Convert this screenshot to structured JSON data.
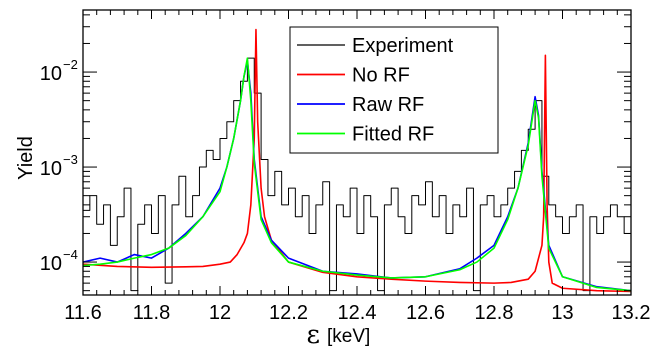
{
  "chart_data": {
    "type": "line",
    "xlabel_symbol": "ε",
    "xlabel_unit": "[keV]",
    "ylabel": "Yield",
    "xlim": [
      11.6,
      13.2
    ],
    "ylim": [
      4.5e-05,
      0.045
    ],
    "yscale": "log",
    "grid": false,
    "legend_position": "top-right",
    "x_ticks": [
      "11.6",
      "11.8",
      "12",
      "12.2",
      "12.4",
      "12.6",
      "12.8",
      "13",
      "13.2"
    ],
    "y_ticks": [
      {
        "base": "10",
        "exp": "−4",
        "value": 0.0001
      },
      {
        "base": "10",
        "exp": "−3",
        "value": 0.001
      },
      {
        "base": "10",
        "exp": "−2",
        "value": 0.01
      }
    ],
    "series": [
      {
        "name": "Experiment",
        "color": "#000000",
        "style": "step",
        "x": [
          11.6,
          11.62,
          11.64,
          11.66,
          11.68,
          11.7,
          11.72,
          11.74,
          11.76,
          11.78,
          11.8,
          11.82,
          11.84,
          11.86,
          11.88,
          11.9,
          11.92,
          11.94,
          11.96,
          11.98,
          12.0,
          12.02,
          12.04,
          12.06,
          12.08,
          12.1,
          12.12,
          12.14,
          12.16,
          12.18,
          12.2,
          12.22,
          12.24,
          12.26,
          12.28,
          12.3,
          12.32,
          12.34,
          12.36,
          12.38,
          12.4,
          12.42,
          12.44,
          12.46,
          12.48,
          12.5,
          12.52,
          12.54,
          12.56,
          12.58,
          12.6,
          12.62,
          12.64,
          12.66,
          12.68,
          12.7,
          12.72,
          12.74,
          12.76,
          12.78,
          12.8,
          12.82,
          12.84,
          12.86,
          12.88,
          12.9,
          12.92,
          12.94,
          12.96,
          12.98,
          13.0,
          13.02,
          13.04,
          13.06,
          13.08,
          13.1,
          13.12,
          13.14,
          13.16,
          13.18
        ],
        "y": [
          0.00035,
          0.0005,
          0.00025,
          0.0004,
          0.00015,
          0.0003,
          0.0006,
          5e-05,
          0.00025,
          0.0004,
          0.0002,
          0.0005,
          6e-05,
          0.0004,
          0.0008,
          0.0003,
          0.0005,
          0.001,
          0.0015,
          0.0012,
          0.002,
          0.003,
          0.005,
          0.008,
          0.014,
          0.006,
          0.0012,
          0.0005,
          0.0009,
          0.0004,
          0.0006,
          0.0003,
          0.0005,
          0.0002,
          0.0004,
          0.0007,
          5e-05,
          0.0004,
          0.0003,
          0.0006,
          0.0002,
          0.0005,
          0.0003,
          5e-05,
          0.0004,
          0.0006,
          0.0003,
          0.0002,
          0.0005,
          0.0004,
          0.0007,
          0.0003,
          0.0005,
          0.0002,
          0.0004,
          0.0003,
          0.0006,
          5e-05,
          0.0004,
          0.0005,
          0.0003,
          0.0004,
          0.0006,
          0.0009,
          0.0015,
          0.0025,
          0.005,
          0.0008,
          0.0004,
          0.0003,
          0.0002,
          0.0003,
          0.0004,
          5e-05,
          0.0003,
          0.0002,
          0.0003,
          0.0004,
          0.0003,
          0.0002
        ]
      },
      {
        "name": "No RF",
        "color": "#ff0000",
        "style": "line",
        "x": [
          11.6,
          11.7,
          11.8,
          11.9,
          11.95,
          12.0,
          12.03,
          12.05,
          12.07,
          12.08,
          12.09,
          12.1,
          12.105,
          12.11,
          12.12,
          12.13,
          12.15,
          12.2,
          12.3,
          12.4,
          12.5,
          12.6,
          12.7,
          12.8,
          12.85,
          12.9,
          12.92,
          12.94,
          12.945,
          12.95,
          12.955,
          12.96,
          12.97,
          13.0,
          13.1,
          13.2
        ],
        "y": [
          9.5e-05,
          9e-05,
          8.8e-05,
          8.9e-05,
          9e-05,
          9.5e-05,
          0.0001,
          0.00012,
          0.00016,
          0.0002,
          0.0004,
          0.002,
          0.028,
          0.003,
          0.0006,
          0.0003,
          0.00017,
          0.0001,
          7.8e-05,
          7e-05,
          6.6e-05,
          6.3e-05,
          6.1e-05,
          6e-05,
          6.1e-05,
          6.6e-05,
          8e-05,
          0.00015,
          0.0003,
          0.015,
          0.0004,
          0.0001,
          6e-05,
          5.3e-05,
          5e-05,
          4.9e-05
        ]
      },
      {
        "name": "Raw RF",
        "color": "#0000ff",
        "style": "line",
        "x": [
          11.6,
          11.65,
          11.7,
          11.75,
          11.8,
          11.85,
          11.9,
          11.95,
          12.0,
          12.02,
          12.04,
          12.06,
          12.07,
          12.08,
          12.09,
          12.1,
          12.12,
          12.15,
          12.2,
          12.3,
          12.4,
          12.5,
          12.6,
          12.7,
          12.75,
          12.8,
          12.84,
          12.87,
          12.9,
          12.92,
          12.93,
          12.94,
          12.96,
          13.0,
          13.1,
          13.2
        ],
        "y": [
          0.0001,
          0.00011,
          0.0001,
          0.00012,
          0.00011,
          0.00014,
          0.0002,
          0.0003,
          0.0006,
          0.001,
          0.002,
          0.005,
          0.009,
          0.013,
          0.006,
          0.0012,
          0.0003,
          0.00017,
          0.00011,
          8e-05,
          7.5e-05,
          6.8e-05,
          7e-05,
          8.5e-05,
          0.00011,
          0.00015,
          0.0003,
          0.0006,
          0.0018,
          0.0055,
          0.0035,
          0.0009,
          0.00015,
          7e-05,
          5.5e-05,
          5e-05
        ]
      },
      {
        "name": "Fitted RF",
        "color": "#00ff00",
        "style": "line",
        "x": [
          11.6,
          11.65,
          11.7,
          11.75,
          11.8,
          11.85,
          11.9,
          11.95,
          12.0,
          12.02,
          12.04,
          12.06,
          12.07,
          12.08,
          12.09,
          12.1,
          12.12,
          12.15,
          12.2,
          12.3,
          12.4,
          12.5,
          12.6,
          12.7,
          12.75,
          12.8,
          12.84,
          12.87,
          12.9,
          12.92,
          12.93,
          12.94,
          12.96,
          13.0,
          13.1,
          13.2
        ],
        "y": [
          9.2e-05,
          9.5e-05,
          0.0001,
          0.00011,
          0.00012,
          0.00014,
          0.00019,
          0.0003,
          0.00055,
          0.001,
          0.002,
          0.005,
          0.009,
          0.014,
          0.005,
          0.0011,
          0.00028,
          0.00016,
          0.0001,
          8e-05,
          7.3e-05,
          6.8e-05,
          7e-05,
          8.3e-05,
          0.0001,
          0.00014,
          0.00028,
          0.0006,
          0.0017,
          0.005,
          0.0033,
          0.0008,
          0.00014,
          7e-05,
          5.4e-05,
          5e-05
        ]
      }
    ]
  }
}
